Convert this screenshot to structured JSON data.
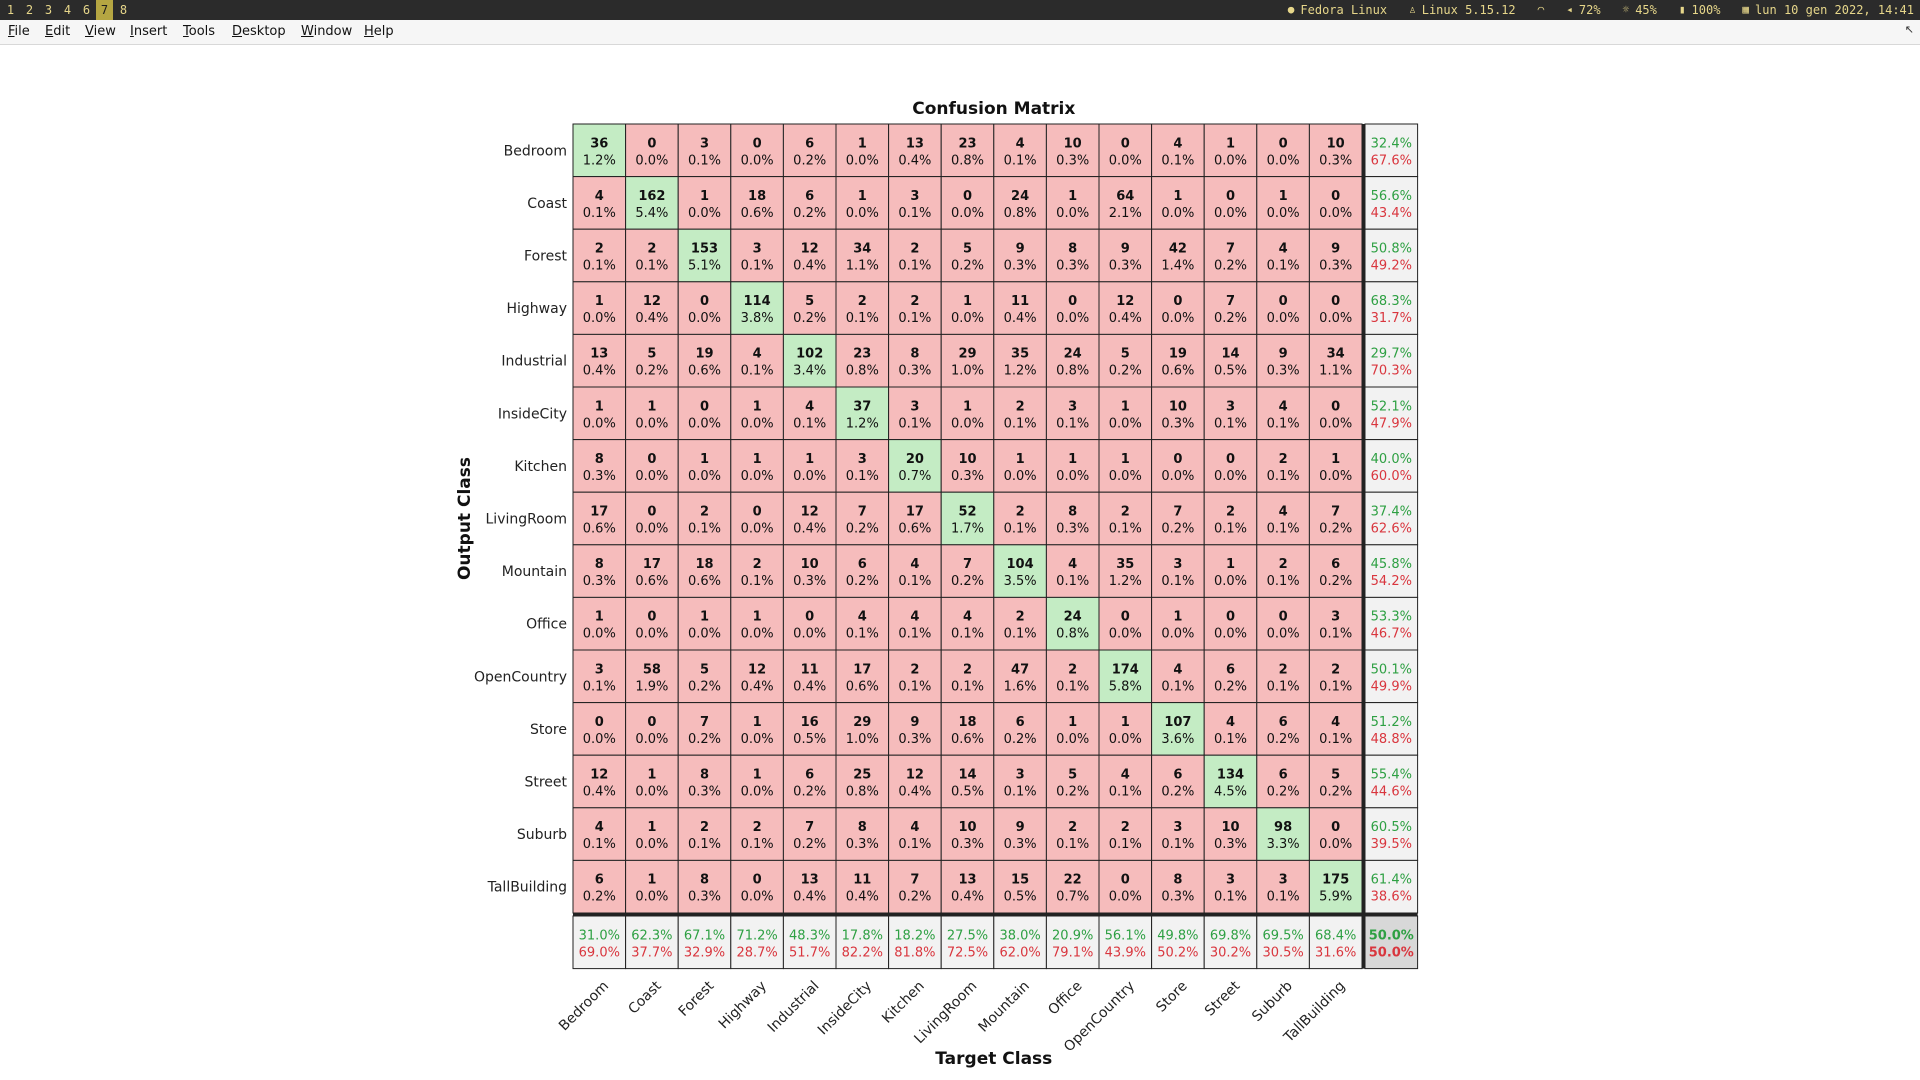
{
  "topbar": {
    "workspaces": [
      "1",
      "2",
      "3",
      "4",
      "6",
      "7",
      "8"
    ],
    "active_workspace": "7",
    "distro": "Fedora Linux",
    "kernel": "Linux 5.15.12",
    "volume": "72%",
    "brightness": "45%",
    "battery": "100%",
    "datetime": "lun 10 gen 2022, 14:41"
  },
  "menubar": {
    "items": [
      "File",
      "Edit",
      "View",
      "Insert",
      "Tools",
      "Desktop",
      "Window",
      "Help"
    ],
    "underlines": [
      "F",
      "E",
      "V",
      "I",
      "T",
      "D",
      "W",
      "H"
    ]
  },
  "colors": {
    "correct_fill": "#c4ecc4",
    "wrong_fill": "#f6bcbc",
    "summary_fill": "#f2f2f2",
    "overall_fill": "#d8d8d8",
    "good_text": "#2ea043",
    "bad_text": "#d9363e"
  },
  "chart_data": {
    "type": "heatmap",
    "title": "Confusion Matrix",
    "xlabel": "Target Class",
    "ylabel": "Output Class",
    "classes": [
      "Bedroom",
      "Coast",
      "Forest",
      "Highway",
      "Industrial",
      "InsideCity",
      "Kitchen",
      "LivingRoom",
      "Mountain",
      "Office",
      "OpenCountry",
      "Store",
      "Street",
      "Suburb",
      "TallBuilding"
    ],
    "counts": [
      [
        36,
        0,
        3,
        0,
        6,
        1,
        13,
        23,
        4,
        10,
        0,
        4,
        1,
        0,
        10
      ],
      [
        4,
        162,
        1,
        18,
        6,
        1,
        3,
        0,
        24,
        1,
        64,
        1,
        0,
        1,
        0
      ],
      [
        2,
        2,
        153,
        3,
        12,
        34,
        2,
        5,
        9,
        8,
        9,
        42,
        7,
        4,
        9
      ],
      [
        1,
        12,
        0,
        114,
        5,
        2,
        2,
        1,
        11,
        0,
        12,
        0,
        7,
        0,
        0
      ],
      [
        13,
        5,
        19,
        4,
        102,
        23,
        8,
        29,
        35,
        24,
        5,
        19,
        14,
        9,
        34
      ],
      [
        1,
        1,
        0,
        1,
        4,
        37,
        3,
        1,
        2,
        3,
        1,
        10,
        3,
        4,
        0
      ],
      [
        8,
        0,
        1,
        1,
        1,
        3,
        20,
        10,
        1,
        1,
        1,
        0,
        0,
        2,
        1
      ],
      [
        17,
        0,
        2,
        0,
        12,
        7,
        17,
        52,
        2,
        8,
        2,
        7,
        2,
        4,
        7
      ],
      [
        8,
        17,
        18,
        2,
        10,
        6,
        4,
        7,
        104,
        4,
        35,
        3,
        1,
        2,
        6
      ],
      [
        1,
        0,
        1,
        1,
        0,
        4,
        4,
        4,
        2,
        24,
        0,
        1,
        0,
        0,
        3
      ],
      [
        3,
        58,
        5,
        12,
        11,
        17,
        2,
        2,
        47,
        2,
        174,
        4,
        6,
        2,
        2
      ],
      [
        0,
        0,
        7,
        1,
        16,
        29,
        9,
        18,
        6,
        1,
        1,
        107,
        4,
        6,
        4
      ],
      [
        12,
        1,
        8,
        1,
        6,
        25,
        12,
        14,
        3,
        5,
        4,
        6,
        134,
        6,
        5
      ],
      [
        4,
        1,
        2,
        2,
        7,
        8,
        4,
        10,
        9,
        2,
        2,
        3,
        10,
        98,
        0
      ],
      [
        6,
        1,
        8,
        0,
        13,
        11,
        7,
        13,
        15,
        22,
        0,
        8,
        3,
        3,
        175
      ]
    ],
    "percents": [
      [
        "1.2%",
        "0.0%",
        "0.1%",
        "0.0%",
        "0.2%",
        "0.0%",
        "0.4%",
        "0.8%",
        "0.1%",
        "0.3%",
        "0.0%",
        "0.1%",
        "0.0%",
        "0.0%",
        "0.3%"
      ],
      [
        "0.1%",
        "5.4%",
        "0.0%",
        "0.6%",
        "0.2%",
        "0.0%",
        "0.1%",
        "0.0%",
        "0.8%",
        "0.0%",
        "2.1%",
        "0.0%",
        "0.0%",
        "0.0%",
        "0.0%"
      ],
      [
        "0.1%",
        "0.1%",
        "5.1%",
        "0.1%",
        "0.4%",
        "1.1%",
        "0.1%",
        "0.2%",
        "0.3%",
        "0.3%",
        "0.3%",
        "1.4%",
        "0.2%",
        "0.1%",
        "0.3%"
      ],
      [
        "0.0%",
        "0.4%",
        "0.0%",
        "3.8%",
        "0.2%",
        "0.1%",
        "0.1%",
        "0.0%",
        "0.4%",
        "0.0%",
        "0.4%",
        "0.0%",
        "0.2%",
        "0.0%",
        "0.0%"
      ],
      [
        "0.4%",
        "0.2%",
        "0.6%",
        "0.1%",
        "3.4%",
        "0.8%",
        "0.3%",
        "1.0%",
        "1.2%",
        "0.8%",
        "0.2%",
        "0.6%",
        "0.5%",
        "0.3%",
        "1.1%"
      ],
      [
        "0.0%",
        "0.0%",
        "0.0%",
        "0.0%",
        "0.1%",
        "1.2%",
        "0.1%",
        "0.0%",
        "0.1%",
        "0.1%",
        "0.0%",
        "0.3%",
        "0.1%",
        "0.1%",
        "0.0%"
      ],
      [
        "0.3%",
        "0.0%",
        "0.0%",
        "0.0%",
        "0.0%",
        "0.1%",
        "0.7%",
        "0.3%",
        "0.0%",
        "0.0%",
        "0.0%",
        "0.0%",
        "0.0%",
        "0.1%",
        "0.0%"
      ],
      [
        "0.6%",
        "0.0%",
        "0.1%",
        "0.0%",
        "0.4%",
        "0.2%",
        "0.6%",
        "1.7%",
        "0.1%",
        "0.3%",
        "0.1%",
        "0.2%",
        "0.1%",
        "0.1%",
        "0.2%"
      ],
      [
        "0.3%",
        "0.6%",
        "0.6%",
        "0.1%",
        "0.3%",
        "0.2%",
        "0.1%",
        "0.2%",
        "3.5%",
        "0.1%",
        "1.2%",
        "0.1%",
        "0.0%",
        "0.1%",
        "0.2%"
      ],
      [
        "0.0%",
        "0.0%",
        "0.0%",
        "0.0%",
        "0.0%",
        "0.1%",
        "0.1%",
        "0.1%",
        "0.1%",
        "0.8%",
        "0.0%",
        "0.0%",
        "0.0%",
        "0.0%",
        "0.1%"
      ],
      [
        "0.1%",
        "1.9%",
        "0.2%",
        "0.4%",
        "0.4%",
        "0.6%",
        "0.1%",
        "0.1%",
        "1.6%",
        "0.1%",
        "5.8%",
        "0.1%",
        "0.2%",
        "0.1%",
        "0.1%"
      ],
      [
        "0.0%",
        "0.0%",
        "0.2%",
        "0.0%",
        "0.5%",
        "1.0%",
        "0.3%",
        "0.6%",
        "0.2%",
        "0.0%",
        "0.0%",
        "3.6%",
        "0.1%",
        "0.2%",
        "0.1%"
      ],
      [
        "0.4%",
        "0.0%",
        "0.3%",
        "0.0%",
        "0.2%",
        "0.8%",
        "0.4%",
        "0.5%",
        "0.1%",
        "0.2%",
        "0.1%",
        "0.2%",
        "4.5%",
        "0.2%",
        "0.2%"
      ],
      [
        "0.1%",
        "0.0%",
        "0.1%",
        "0.1%",
        "0.2%",
        "0.3%",
        "0.1%",
        "0.3%",
        "0.3%",
        "0.1%",
        "0.1%",
        "0.1%",
        "0.3%",
        "3.3%",
        "0.0%"
      ],
      [
        "0.2%",
        "0.0%",
        "0.3%",
        "0.0%",
        "0.4%",
        "0.4%",
        "0.2%",
        "0.4%",
        "0.5%",
        "0.7%",
        "0.0%",
        "0.3%",
        "0.1%",
        "0.1%",
        "5.9%"
      ]
    ],
    "row_summary": [
      [
        "32.4%",
        "67.6%"
      ],
      [
        "56.6%",
        "43.4%"
      ],
      [
        "50.8%",
        "49.2%"
      ],
      [
        "68.3%",
        "31.7%"
      ],
      [
        "29.7%",
        "70.3%"
      ],
      [
        "52.1%",
        "47.9%"
      ],
      [
        "40.0%",
        "60.0%"
      ],
      [
        "37.4%",
        "62.6%"
      ],
      [
        "45.8%",
        "54.2%"
      ],
      [
        "53.3%",
        "46.7%"
      ],
      [
        "50.1%",
        "49.9%"
      ],
      [
        "51.2%",
        "48.8%"
      ],
      [
        "55.4%",
        "44.6%"
      ],
      [
        "60.5%",
        "39.5%"
      ],
      [
        "61.4%",
        "38.6%"
      ]
    ],
    "col_summary": [
      [
        "31.0%",
        "69.0%"
      ],
      [
        "62.3%",
        "37.7%"
      ],
      [
        "67.1%",
        "32.9%"
      ],
      [
        "71.2%",
        "28.7%"
      ],
      [
        "48.3%",
        "51.7%"
      ],
      [
        "17.8%",
        "82.2%"
      ],
      [
        "18.2%",
        "81.8%"
      ],
      [
        "27.5%",
        "72.5%"
      ],
      [
        "38.0%",
        "62.0%"
      ],
      [
        "20.9%",
        "79.1%"
      ],
      [
        "56.1%",
        "43.9%"
      ],
      [
        "49.8%",
        "50.2%"
      ],
      [
        "69.8%",
        "30.2%"
      ],
      [
        "69.5%",
        "30.5%"
      ],
      [
        "68.4%",
        "31.6%"
      ]
    ],
    "overall": [
      "50.0%",
      "50.0%"
    ]
  }
}
